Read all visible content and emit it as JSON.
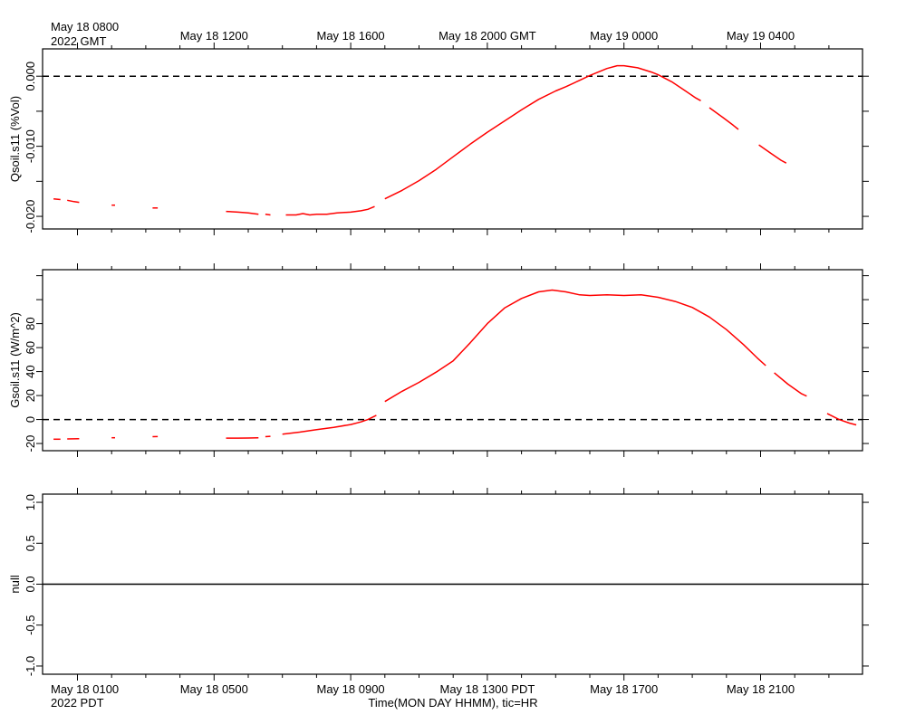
{
  "top_axis": {
    "corner_line1": "May 18 0800",
    "corner_line2": "2022 GMT",
    "labels": [
      {
        "hour": 4,
        "text": "May 18 1200"
      },
      {
        "hour": 8,
        "text": "May 18 1600"
      },
      {
        "hour": 12,
        "text": "May 18 2000 GMT"
      },
      {
        "hour": 16,
        "text": "May 19 0000"
      },
      {
        "hour": 20,
        "text": "May 19 0400"
      }
    ]
  },
  "bottom_axis": {
    "corner_line1": "May 18 0100",
    "corner_line2": "2022 PDT",
    "labels": [
      {
        "hour": 4,
        "text": "May 18 0500"
      },
      {
        "hour": 8,
        "text": "May 18 0900"
      },
      {
        "hour": 12,
        "text": "May 18 1300 PDT"
      },
      {
        "hour": 16,
        "text": "May 18 1700"
      },
      {
        "hour": 20,
        "text": "May 18 2100"
      }
    ],
    "xlabel": "Time(MON DAY HHMM), tic=HR"
  },
  "colors": {
    "series": "#ff0000",
    "axis": "#000000"
  },
  "chart_data": [
    {
      "type": "line",
      "ylabel": "Qsoil.s11 (%Vol)",
      "xlim": [
        -0.78,
        22.55
      ],
      "ylim": [
        -0.0218,
        0.0039
      ],
      "yticks": [
        {
          "v": 0.0,
          "label": "0.000"
        },
        {
          "v": -0.005,
          "label": ""
        },
        {
          "v": -0.01,
          "label": "-0.010"
        },
        {
          "v": -0.015,
          "label": ""
        },
        {
          "v": -0.02,
          "label": "-0.020"
        }
      ],
      "reference_line": 0.0,
      "series": [
        {
          "name": "Qsoil.s11",
          "segments": [
            [
              [
                -0.7,
                -0.0175
              ],
              [
                -0.5,
                -0.0176
              ]
            ],
            [
              [
                -0.3,
                -0.0177
              ],
              [
                -0.1,
                -0.0179
              ],
              [
                0.05,
                -0.018
              ]
            ],
            [
              [
                1.0,
                -0.0184
              ],
              [
                1.1,
                -0.0184
              ]
            ],
            [
              [
                2.2,
                -0.0188
              ],
              [
                2.35,
                -0.0188
              ]
            ],
            [
              [
                4.35,
                -0.0193
              ],
              [
                4.7,
                -0.0194
              ],
              [
                5.0,
                -0.0195
              ],
              [
                5.3,
                -0.0197
              ]
            ],
            [
              [
                5.5,
                -0.0197
              ],
              [
                5.65,
                -0.0198
              ]
            ],
            [
              [
                6.1,
                -0.0198
              ],
              [
                6.4,
                -0.0198
              ],
              [
                6.6,
                -0.0196
              ],
              [
                6.8,
                -0.0198
              ],
              [
                7.0,
                -0.0197
              ],
              [
                7.3,
                -0.0197
              ],
              [
                7.6,
                -0.0195
              ],
              [
                8.0,
                -0.0194
              ],
              [
                8.3,
                -0.0192
              ],
              [
                8.5,
                -0.019
              ],
              [
                8.7,
                -0.0186
              ]
            ],
            [
              [
                9.0,
                -0.0175
              ],
              [
                9.5,
                -0.0163
              ],
              [
                10.0,
                -0.0149
              ],
              [
                10.5,
                -0.0133
              ],
              [
                11.0,
                -0.0115
              ],
              [
                11.5,
                -0.0097
              ],
              [
                12.0,
                -0.008
              ],
              [
                12.5,
                -0.0064
              ],
              [
                13.0,
                -0.0048
              ],
              [
                13.5,
                -0.0033
              ],
              [
                14.0,
                -0.0021
              ],
              [
                14.3,
                -0.0015
              ],
              [
                14.7,
                -0.0006
              ],
              [
                15.0,
                0.0001
              ],
              [
                15.5,
                0.0011
              ],
              [
                15.8,
                0.0015
              ],
              [
                16.0,
                0.0015
              ],
              [
                16.4,
                0.0012
              ],
              [
                16.8,
                0.0006
              ],
              [
                17.0,
                0.0002
              ],
              [
                17.4,
                -0.0008
              ],
              [
                17.8,
                -0.0021
              ],
              [
                18.1,
                -0.0031
              ],
              [
                18.25,
                -0.0035
              ]
            ],
            [
              [
                18.5,
                -0.0045
              ],
              [
                18.9,
                -0.0059
              ],
              [
                19.2,
                -0.007
              ],
              [
                19.35,
                -0.0076
              ]
            ],
            [
              [
                19.95,
                -0.0098
              ],
              [
                20.3,
                -0.011
              ],
              [
                20.6,
                -0.012
              ],
              [
                20.75,
                -0.0124
              ]
            ]
          ]
        }
      ]
    },
    {
      "type": "line",
      "ylabel": "Gsoil.s11 (W/m^2)",
      "xlim": [
        -0.78,
        22.55
      ],
      "ylim": [
        -26,
        125
      ],
      "yticks": [
        {
          "v": -20,
          "label": "-20"
        },
        {
          "v": 0,
          "label": "0"
        },
        {
          "v": 20,
          "label": "20"
        },
        {
          "v": 40,
          "label": "40"
        },
        {
          "v": 60,
          "label": "60"
        },
        {
          "v": 80,
          "label": "80"
        },
        {
          "v": 100,
          "label": ""
        },
        {
          "v": 120,
          "label": ""
        }
      ],
      "reference_line": 0,
      "series": [
        {
          "name": "Gsoil.s11",
          "segments": [
            [
              [
                -0.7,
                -16.4
              ],
              [
                -0.5,
                -16.4
              ]
            ],
            [
              [
                -0.3,
                -16.2
              ],
              [
                0.05,
                -16
              ]
            ],
            [
              [
                1.0,
                -15.2
              ],
              [
                1.1,
                -15.2
              ]
            ],
            [
              [
                2.2,
                -14.3
              ],
              [
                2.35,
                -14.2
              ]
            ],
            [
              [
                4.35,
                -15.5
              ],
              [
                4.7,
                -15.5
              ],
              [
                5.0,
                -15.4
              ],
              [
                5.3,
                -15.3
              ]
            ],
            [
              [
                5.5,
                -14.3
              ],
              [
                5.65,
                -14
              ]
            ],
            [
              [
                6.0,
                -12.2
              ],
              [
                6.5,
                -10.5
              ],
              [
                7.0,
                -8.5
              ],
              [
                7.5,
                -6.5
              ],
              [
                8.0,
                -4.2
              ],
              [
                8.3,
                -2
              ],
              [
                8.5,
                0
              ],
              [
                8.75,
                3.5
              ]
            ],
            [
              [
                9.0,
                15
              ],
              [
                9.5,
                23.5
              ],
              [
                10.0,
                31
              ],
              [
                10.5,
                39.5
              ],
              [
                11.0,
                49
              ],
              [
                11.5,
                64
              ],
              [
                12.0,
                80
              ],
              [
                12.5,
                93
              ],
              [
                13.0,
                101
              ],
              [
                13.5,
                106.5
              ],
              [
                13.9,
                108
              ],
              [
                14.3,
                106.5
              ],
              [
                14.7,
                104
              ],
              [
                15.0,
                103.5
              ],
              [
                15.5,
                104
              ],
              [
                16.0,
                103.5
              ],
              [
                16.5,
                104
              ],
              [
                17.0,
                102
              ],
              [
                17.5,
                98.5
              ],
              [
                18.0,
                93.5
              ],
              [
                18.5,
                85.5
              ],
              [
                19.0,
                75
              ],
              [
                19.5,
                62.5
              ],
              [
                19.9,
                51.5
              ],
              [
                20.15,
                45
              ]
            ],
            [
              [
                20.4,
                39
              ],
              [
                20.8,
                29.5
              ],
              [
                21.2,
                21.5
              ],
              [
                21.35,
                19.5
              ]
            ],
            [
              [
                21.95,
                5
              ],
              [
                22.3,
                0
              ],
              [
                22.6,
                -3
              ],
              [
                22.8,
                -4.5
              ]
            ]
          ]
        }
      ]
    },
    {
      "type": "line",
      "ylabel": "null",
      "xlim": [
        -0.78,
        22.55
      ],
      "ylim": [
        -1.1,
        1.1
      ],
      "yticks": [
        {
          "v": -1.0,
          "label": "-1.0"
        },
        {
          "v": -0.5,
          "label": "-0.5"
        },
        {
          "v": 0.0,
          "label": "0.0"
        },
        {
          "v": 0.5,
          "label": "0.5"
        },
        {
          "v": 1.0,
          "label": "1.0"
        }
      ],
      "reference_line": 0.0,
      "series": []
    }
  ]
}
